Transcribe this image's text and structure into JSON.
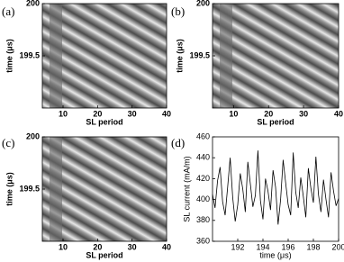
{
  "chart_data": [
    {
      "type": "heatmap",
      "panel_label": "(a)",
      "xlabel": "SL period",
      "ylabel": "time (μs)",
      "xlim": [
        4,
        40
      ],
      "ylim": [
        199,
        200
      ],
      "xticks": [
        10,
        20,
        30,
        40
      ],
      "yticks": [
        199.5,
        200
      ],
      "colormap": "gray"
    },
    {
      "type": "heatmap",
      "panel_label": "(b)",
      "xlabel": "SL period",
      "ylabel": "time (μs)",
      "xlim": [
        4,
        40
      ],
      "ylim": [
        199,
        200
      ],
      "xticks": [
        10,
        20,
        30,
        40
      ],
      "yticks": [
        199.5,
        200
      ],
      "colormap": "gray"
    },
    {
      "type": "heatmap",
      "panel_label": "(c)",
      "xlabel": "SL period",
      "ylabel": "time (μs)",
      "xlim": [
        4,
        40
      ],
      "ylim": [
        199,
        200
      ],
      "xticks": [
        10,
        20,
        30,
        40
      ],
      "yticks": [
        199.5,
        200
      ],
      "colormap": "gray"
    },
    {
      "type": "line",
      "panel_label": "(d)",
      "xlabel": "time (μs)",
      "ylabel": "SL current (mA/m)",
      "xlim": [
        190,
        200
      ],
      "ylim": [
        360,
        460
      ],
      "xticks": [
        192,
        194,
        196,
        198,
        200
      ],
      "yticks": [
        360,
        380,
        400,
        420,
        440,
        460
      ],
      "x": [
        190.0,
        190.2,
        190.4,
        190.6,
        190.8,
        191.0,
        191.2,
        191.4,
        191.6,
        191.8,
        192.0,
        192.2,
        192.4,
        192.6,
        192.8,
        193.0,
        193.2,
        193.4,
        193.6,
        193.8,
        194.0,
        194.2,
        194.4,
        194.6,
        194.8,
        195.0,
        195.2,
        195.4,
        195.6,
        195.8,
        196.0,
        196.2,
        196.4,
        196.6,
        196.8,
        197.0,
        197.2,
        197.4,
        197.6,
        197.8,
        198.0,
        198.2,
        198.4,
        198.6,
        198.8,
        199.0,
        199.2,
        199.4,
        199.6,
        199.8,
        200.0
      ],
      "series": [
        {
          "color": "#000000",
          "values": [
            405,
            392,
            418,
            431,
            398,
            385,
            412,
            440,
            402,
            379,
            395,
            425,
            410,
            388,
            436,
            415,
            393,
            404,
            447,
            399,
            381,
            420,
            408,
            390,
            428,
            412,
            376,
            400,
            438,
            416,
            395,
            385,
            445,
            407,
            392,
            421,
            403,
            383,
            430,
            411,
            397,
            441,
            405,
            388,
            419,
            400,
            383,
            426,
            408,
            394,
            401
          ]
        }
      ]
    }
  ]
}
